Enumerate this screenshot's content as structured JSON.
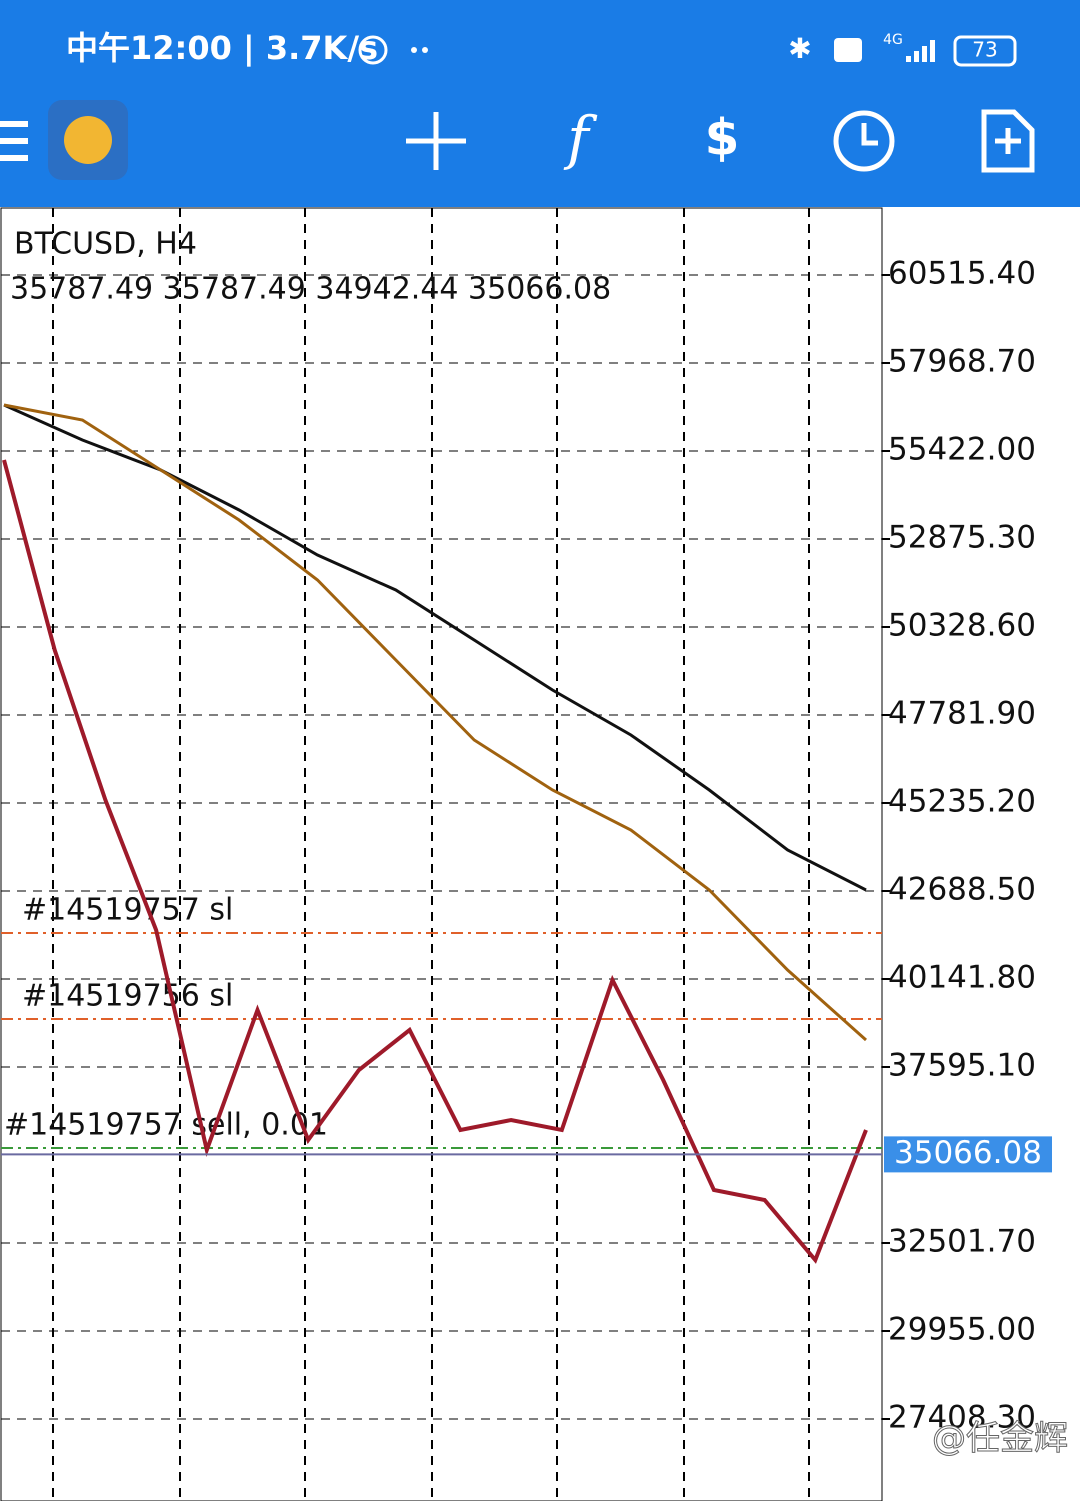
{
  "status_bar": {
    "time": "中午12:00 | 3.7K/s",
    "network": "4G",
    "battery": "73"
  },
  "chart_data": {
    "type": "line",
    "symbol": "BTCUSD, H4",
    "ohlc": "35787.49 35787.49 34942.44 35066.08",
    "ylim": [
      25035,
      62454.4
    ],
    "yticks": [
      {
        "value": 60515.4,
        "label": "60515.40"
      },
      {
        "value": 57968.7,
        "label": "57968.70"
      },
      {
        "value": 55422,
        "label": "55422.00"
      },
      {
        "value": 52875.3,
        "label": "52875.30"
      },
      {
        "value": 50328.6,
        "label": "50328.60"
      },
      {
        "value": 47781.9,
        "label": "47781.90"
      },
      {
        "value": 45235.2,
        "label": "45235.20"
      },
      {
        "value": 42688.5,
        "label": "42688.50"
      },
      {
        "value": 40141.8,
        "label": "40141.80"
      },
      {
        "value": 37595.1,
        "label": "37595.10"
      },
      {
        "value": 32501.7,
        "label": "32501.70"
      },
      {
        "value": 29955,
        "label": "29955.00"
      },
      {
        "value": 27408.3,
        "label": "27408.30"
      }
    ],
    "grid": true,
    "current_price": 35066.08,
    "order_lines": [
      {
        "label": "#14519757 sl",
        "value": 41472,
        "color": "#e0602a"
      },
      {
        "label": "#14519756 sl",
        "value": 38983,
        "color": "#e0602a"
      },
      {
        "label": "#14519757 sell, 0.01",
        "value": 35250,
        "color": "#3a9a3a"
      }
    ],
    "series": [
      {
        "color": "#111111",
        "values": [
          56753,
          55740,
          54872,
          53714,
          52412,
          51399,
          49952,
          48505,
          47203,
          45611,
          43874,
          42717
        ]
      },
      {
        "color": "#a0620f",
        "values": [
          56753,
          56319,
          54872,
          53425,
          51688,
          49373,
          47058,
          45611,
          44453,
          42717,
          40401,
          38376
        ]
      },
      {
        "color": "#9e1a2a",
        "values": [
          55161,
          49662,
          45321,
          41559,
          35192,
          39244,
          35482,
          37508,
          38665,
          35771,
          36061,
          35771,
          40112,
          37218,
          34035,
          33745,
          32009,
          35771
        ]
      }
    ]
  },
  "watermark": "@任金辉"
}
